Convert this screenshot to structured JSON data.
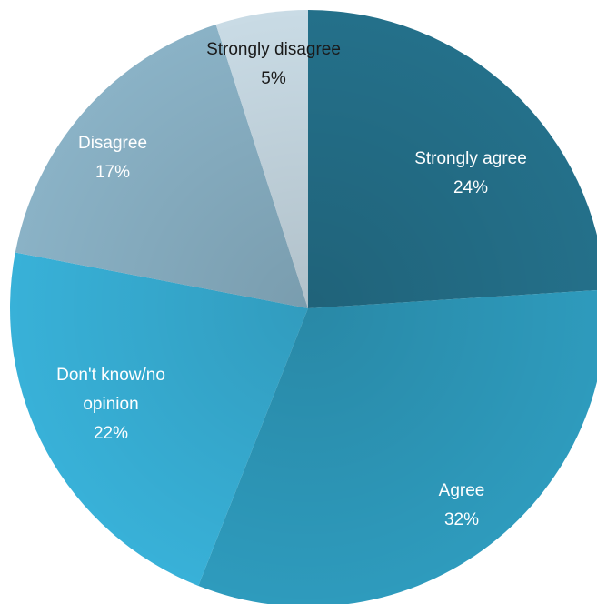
{
  "chart_data": {
    "type": "pie",
    "title": "",
    "start_angle_deg": 0,
    "direction": "clockwise",
    "slices": [
      {
        "label_lines": [
          "Strongly agree"
        ],
        "value_label": "24%",
        "value": 24,
        "color": "#24708a",
        "text_color": "#ffffff"
      },
      {
        "label_lines": [
          "Agree"
        ],
        "value_label": "32%",
        "value": 32,
        "color": "#2e9bbd",
        "text_color": "#ffffff"
      },
      {
        "label_lines": [
          "Don't know/no",
          "opinion"
        ],
        "value_label": "22%",
        "value": 22,
        "color": "#38b1d8",
        "text_color": "#ffffff"
      },
      {
        "label_lines": [
          "Disagree"
        ],
        "value_label": "17%",
        "value": 17,
        "color": "#8ab2c6",
        "text_color": "#ffffff"
      },
      {
        "label_lines": [
          "Strongly disagree"
        ],
        "value_label": "5%",
        "value": 5,
        "color": "#c9dbe5",
        "text_color": "#1a1a1a"
      }
    ]
  }
}
